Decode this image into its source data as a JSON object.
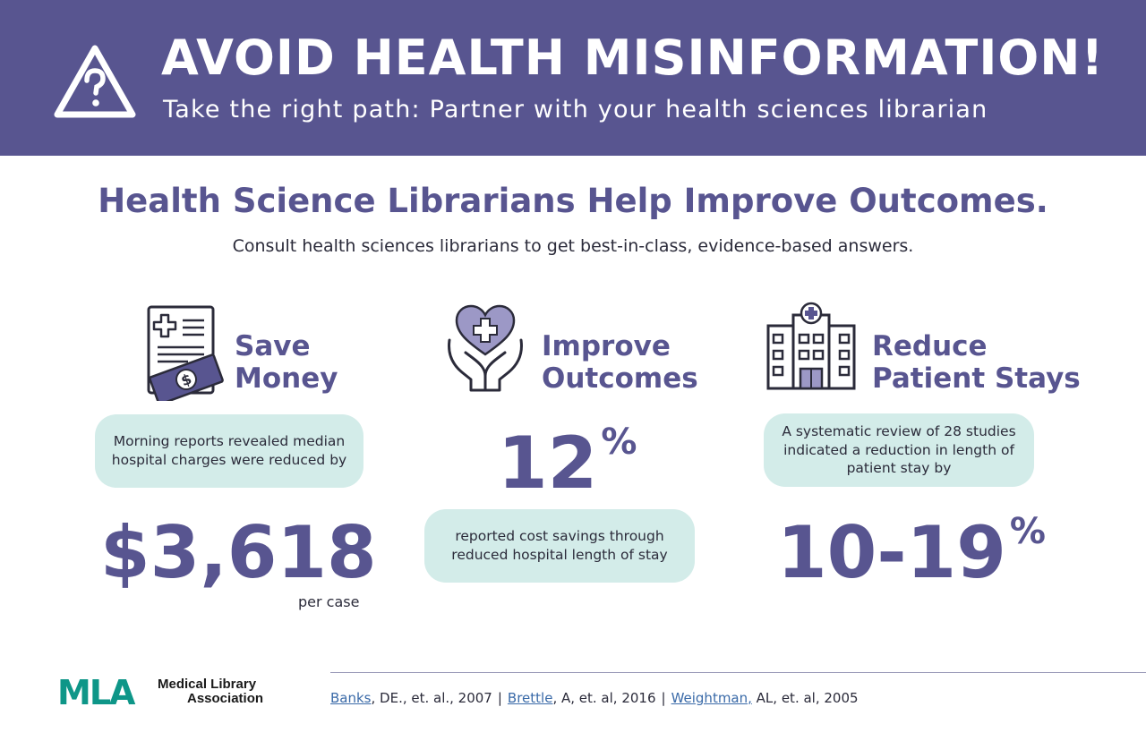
{
  "banner": {
    "title": "AVOID HEALTH MISINFORMATION!",
    "subtitle": "Take the right path: Partner with your health sciences librarian",
    "icon": "warning-question-icon",
    "bg_color": "#585590"
  },
  "headline": "Health Science Librarians Help Improve Outcomes.",
  "subheadline": "Consult health sciences librarians to get best-in-class, evidence-based answers.",
  "columns": {
    "save_money": {
      "icon": "medical-bill-money-icon",
      "title_line1": "Save",
      "title_line2": "Money",
      "bubble": "Morning reports revealed median hospital charges were reduced by",
      "stat": "$3,618",
      "stat_note": "per case"
    },
    "improve_outcomes": {
      "icon": "heart-hands-icon",
      "title_line1": "Improve",
      "title_line2": "Outcomes",
      "stat_number": "12",
      "stat_unit": "%",
      "bubble": "reported cost savings through reduced hospital length of stay"
    },
    "reduce_stays": {
      "icon": "hospital-building-icon",
      "title_line1": "Reduce",
      "title_line2": "Patient Stays",
      "bubble": "A systematic review of 28 studies indicated a reduction in length of patient stay by",
      "stat_number": "10-19",
      "stat_unit": "%"
    }
  },
  "footer": {
    "logo_text": "MLA",
    "logo_line1": "Medical Library",
    "logo_line2": "Association",
    "refs": [
      {
        "author": "Banks",
        "rest": ", DE., et. al., 2007"
      },
      {
        "author": "Brettle",
        "rest": ", A, et. al, 2016"
      },
      {
        "author": "Weightman,",
        "rest": " AL, et. al, 2005"
      }
    ],
    "separator": "|"
  },
  "colors": {
    "accent": "#585590",
    "bubble": "#d3ece9",
    "logo_teal": "#0e9688",
    "link": "#3a6aa8"
  }
}
